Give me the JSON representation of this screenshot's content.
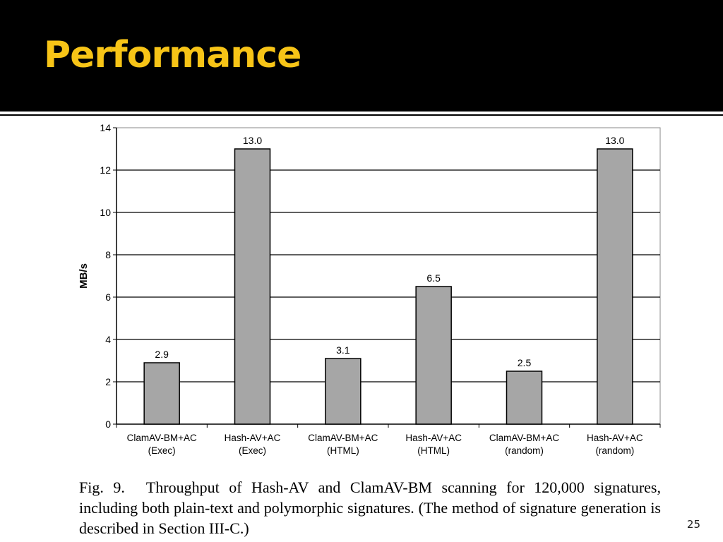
{
  "slide": {
    "title": "Performance",
    "page_number": "25",
    "caption": {
      "label": "Fig. 9.",
      "text": "Throughput of Hash-AV and ClamAV-BM scanning for 120,000 signatures, including both plain-text and polymorphic signatures. (The method of signature generation is described in Section III-C.)"
    }
  },
  "colors": {
    "header_background": "#000000",
    "title": "#f7c417",
    "bar_fill": "#a6a6a6",
    "bar_stroke": "#000000",
    "gridline": "#000000"
  },
  "chart_data": {
    "type": "bar",
    "categories": [
      [
        "ClamAV-BM+AC",
        "(Exec)"
      ],
      [
        "Hash-AV+AC",
        "(Exec)"
      ],
      [
        "ClamAV-BM+AC",
        "(HTML)"
      ],
      [
        "Hash-AV+AC",
        "(HTML)"
      ],
      [
        "ClamAV-BM+AC",
        "(random)"
      ],
      [
        "Hash-AV+AC",
        "(random)"
      ]
    ],
    "values": [
      2.9,
      13.0,
      3.1,
      6.5,
      2.5,
      13.0
    ],
    "data_labels": [
      "2.9",
      "13.0",
      "3.1",
      "6.5",
      "2.5",
      "13.0"
    ],
    "ylabel": "MB/s",
    "xlabel": "",
    "ylim": [
      0,
      14
    ],
    "yticks": [
      0,
      2,
      4,
      6,
      8,
      10,
      12,
      14
    ],
    "grid": true,
    "legend": "none"
  }
}
